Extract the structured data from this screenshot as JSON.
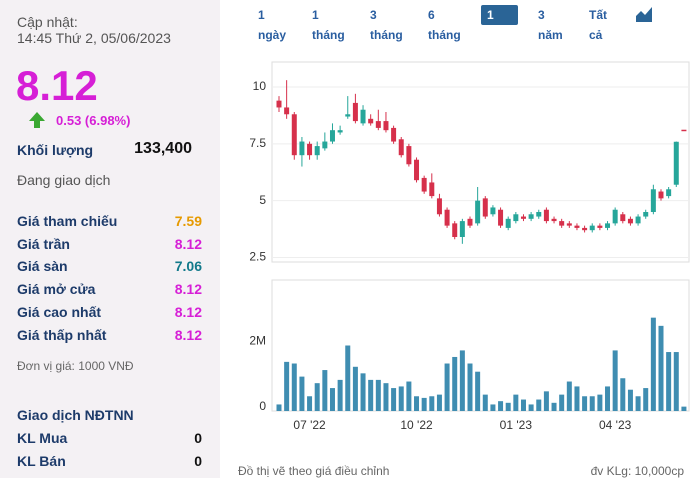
{
  "quote": {
    "updated_label": "Cập nhật:",
    "updated_time": "14:45 Thứ 2, 05/06/2023",
    "price": 8.12,
    "change": "0.53 (6.98%)",
    "volume_label": "Khối lượng",
    "volume": "133,400",
    "status": "Đang giao dịch",
    "rows": [
      {
        "label": "Giá tham chiếu",
        "value": 7.59,
        "color": "#e69a00"
      },
      {
        "label": "Giá trần",
        "value": 8.12,
        "color": "#d61fd6"
      },
      {
        "label": "Giá sàn",
        "value": 7.06,
        "color": "#11798a"
      },
      {
        "label": "Giá mở cửa",
        "value": 8.12,
        "color": "#d61fd6"
      },
      {
        "label": "Giá cao nhất",
        "value": 8.12,
        "color": "#d61fd6"
      },
      {
        "label": "Giá thấp nhất",
        "value": 8.12,
        "color": "#d61fd6"
      }
    ],
    "unit_note": "Đơn vị giá: 1000 VNĐ",
    "foreign_title": "Giao dịch NĐTNN",
    "foreign_buy_label": "KL Mua",
    "foreign_buy": 0,
    "foreign_sell_label": "KL Bán",
    "foreign_sell": 0
  },
  "tabs": {
    "labels": [
      "1 ngày",
      "1 tháng",
      "3 tháng",
      "6 tháng",
      "1 năm",
      "3 năm",
      "Tất cả"
    ],
    "active": 4
  },
  "chart_data": [
    {
      "type": "candlestick",
      "up_color": "#26a69a",
      "down_color": "#d6304b",
      "grid": true,
      "ylim": [
        2.3,
        11.1
      ],
      "yticks": [
        2.5,
        5,
        7.5,
        10
      ],
      "open": [
        9.4,
        9.1,
        8.8,
        7.0,
        7.5,
        7.0,
        7.3,
        7.6,
        8.0,
        8.7,
        9.3,
        8.4,
        8.6,
        8.5,
        8.5,
        8.2,
        7.7,
        7.4,
        6.8,
        6.0,
        5.8,
        5.1,
        4.6,
        4.0,
        3.4,
        4.2,
        4.0,
        5.1,
        4.4,
        4.6,
        3.8,
        4.1,
        4.3,
        4.2,
        4.3,
        4.6,
        4.2,
        4.1,
        4.0,
        3.9,
        3.8,
        3.7,
        3.9,
        3.8,
        4.0,
        4.4,
        4.2,
        4.0,
        4.3,
        4.5,
        5.4,
        5.2,
        5.7,
        8.12
      ],
      "high": [
        9.6,
        10.3,
        8.9,
        7.8,
        7.6,
        7.6,
        8.0,
        8.4,
        8.3,
        9.6,
        9.7,
        9.2,
        8.8,
        9.0,
        8.9,
        8.3,
        7.8,
        7.5,
        6.9,
        6.1,
        6.2,
        5.3,
        4.7,
        4.1,
        4.2,
        4.3,
        5.6,
        5.2,
        4.8,
        4.7,
        4.3,
        4.5,
        4.4,
        4.5,
        4.6,
        4.7,
        4.3,
        4.2,
        4.1,
        4.0,
        3.9,
        4.0,
        4.0,
        4.1,
        4.7,
        4.5,
        4.3,
        4.4,
        4.6,
        5.7,
        5.5,
        5.6,
        7.6,
        8.12
      ],
      "low": [
        8.9,
        8.6,
        6.8,
        6.5,
        6.8,
        6.8,
        7.2,
        7.5,
        7.9,
        8.6,
        8.4,
        8.3,
        8.3,
        8.1,
        8.0,
        7.5,
        6.9,
        6.5,
        5.8,
        5.3,
        5.1,
        4.3,
        3.8,
        3.3,
        3.1,
        3.8,
        3.9,
        4.2,
        4.3,
        3.8,
        3.7,
        4.0,
        4.1,
        4.1,
        4.2,
        4.0,
        4.0,
        3.8,
        3.8,
        3.7,
        3.6,
        3.6,
        3.7,
        3.7,
        3.9,
        4.0,
        3.9,
        3.9,
        4.2,
        4.4,
        5.0,
        5.1,
        5.6,
        8.12
      ],
      "close": [
        9.1,
        8.8,
        7.0,
        7.6,
        7.0,
        7.4,
        7.6,
        8.1,
        8.1,
        8.8,
        8.5,
        9.0,
        8.4,
        8.2,
        8.1,
        7.6,
        7.0,
        6.6,
        5.9,
        5.4,
        5.2,
        4.4,
        3.9,
        3.4,
        4.1,
        3.9,
        5.0,
        4.3,
        4.7,
        3.9,
        4.2,
        4.4,
        4.2,
        4.4,
        4.5,
        4.1,
        4.1,
        3.9,
        3.9,
        3.8,
        3.7,
        3.9,
        3.8,
        4.0,
        4.6,
        4.1,
        4.0,
        4.3,
        4.5,
        5.5,
        5.1,
        5.5,
        7.59,
        8.12
      ]
    },
    {
      "type": "bar",
      "color": "#3f8db1",
      "ylim": [
        0,
        4000000
      ],
      "yticks": [
        0,
        {
          "value": 2000000,
          "label": "2M"
        }
      ],
      "categories": [
        null,
        null,
        null,
        null,
        "07 '22",
        null,
        null,
        null,
        null,
        null,
        null,
        null,
        null,
        null,
        null,
        null,
        null,
        null,
        "10 '22",
        null,
        null,
        null,
        null,
        null,
        null,
        null,
        null,
        null,
        null,
        null,
        null,
        "01 '23",
        null,
        null,
        null,
        null,
        null,
        null,
        null,
        null,
        null,
        null,
        null,
        null,
        "04 '23",
        null,
        null,
        null,
        null,
        null,
        null,
        null,
        null,
        null
      ],
      "values": [
        200000,
        1500000,
        1450000,
        1050000,
        450000,
        850000,
        1250000,
        700000,
        950000,
        2000000,
        1350000,
        1150000,
        950000,
        950000,
        850000,
        700000,
        750000,
        900000,
        450000,
        400000,
        450000,
        500000,
        1450000,
        1650000,
        1850000,
        1450000,
        1200000,
        500000,
        200000,
        300000,
        250000,
        500000,
        350000,
        200000,
        350000,
        600000,
        250000,
        500000,
        900000,
        750000,
        450000,
        450000,
        500000,
        750000,
        1850000,
        1000000,
        650000,
        450000,
        700000,
        2850000,
        2600000,
        1800000,
        1800000,
        133400
      ]
    }
  ],
  "footer": {
    "note": "Đồ thị vẽ theo giá điều chỉnh",
    "unit": "đv KLg: 10,000cp"
  }
}
